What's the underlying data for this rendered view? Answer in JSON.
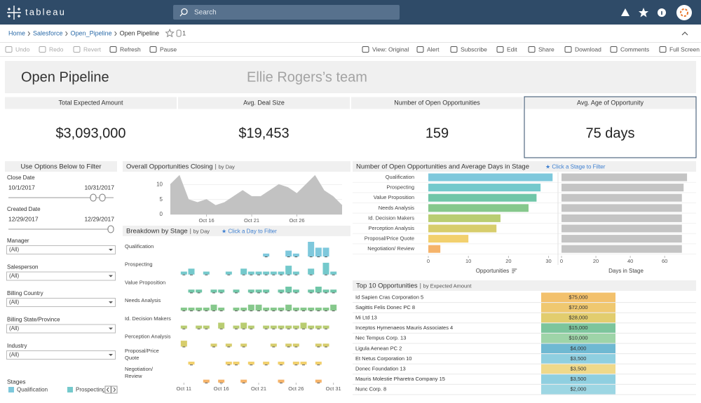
{
  "nav": {
    "logo": "tableau",
    "search": "Search"
  },
  "breadcrumb": {
    "items": [
      "Home",
      "Salesforce",
      "Open_Pipeline",
      "Open Pipeline"
    ],
    "count": 1
  },
  "toolbar": {
    "left": [
      "Undo",
      "Redo",
      "Revert",
      "Refresh",
      "Pause"
    ],
    "right": [
      "View: Original",
      "Alert",
      "Subscribe",
      "Edit",
      "Share",
      "Download",
      "Comments",
      "Full Screen"
    ]
  },
  "header": {
    "title": "Open Pipeline",
    "subtitle": "Ellie Rogers’s team"
  },
  "kpis": [
    {
      "label": "Total Expected Amount",
      "value": "$3,093,000"
    },
    {
      "label": "Avg. Deal Size",
      "value": "$19,453"
    },
    {
      "label": "Number of Open Opportunities",
      "value": "159"
    },
    {
      "label": "Avg. Age of Opportunity",
      "value": "75 days"
    }
  ],
  "filters": {
    "title": "Use Options Below to Filter",
    "sliders": [
      {
        "label": "Close Date",
        "from": "10/1/2017",
        "to": "10/31/2017"
      },
      {
        "label": "Created Date",
        "from": "12/29/2017",
        "to": "12/29/2017"
      }
    ],
    "dropdowns": [
      {
        "label": "Manager",
        "value": "(All)"
      },
      {
        "label": "Salesperson",
        "value": "(All)"
      },
      {
        "label": "Billing Country",
        "value": "(All)"
      },
      {
        "label": "Billing State/Province",
        "value": "(All)"
      },
      {
        "label": "Industry",
        "value": "(All)"
      }
    ],
    "legend_title": "Stages"
  },
  "top10": {
    "title": "Top 10 Opportunities",
    "subtitle": "by Expected Amount",
    "rows": [
      [
        "Id Sapien Cras Corporation 5",
        "$75,000"
      ],
      [
        "Sagittis Felis Donec PC 8",
        "$72,000"
      ],
      [
        "Mi Ltd 13",
        "$28,000"
      ],
      [
        "Inceptos Hymenaeos Mauris Associates 4",
        "$15,000"
      ],
      [
        "Nec Tempus Corp. 13",
        "$10,000"
      ],
      [
        "Ligula Aenean PC 2",
        "$4,000"
      ],
      [
        "Et Netus Corporation 10",
        "$3,500"
      ],
      [
        "Donec Foundation 13",
        "$3,500"
      ],
      [
        "Mauris Molestie Pharetra Company 15",
        "$3,500"
      ],
      [
        "Nunc Corp. 8",
        "$2,000"
      ]
    ],
    "colors": [
      "#f3c16c",
      "#efc870",
      "#e2cd6e",
      "#7cc59c",
      "#9ed4a8",
      "#6fb9d2",
      "#8fcfe0",
      "#efd98a",
      "#8fcfe0",
      "#9dd6e3"
    ]
  },
  "chart_data": [
    {
      "type": "area",
      "title": "Overall Opportunities Closing",
      "subtitle": "by Day",
      "color": "#c2c2c2",
      "x": [
        12,
        13,
        14,
        15,
        16,
        17,
        18,
        19,
        20,
        21,
        22,
        23,
        24,
        25,
        26,
        27,
        28,
        29,
        30,
        31
      ],
      "values": [
        10,
        13,
        5,
        4,
        5,
        3,
        4,
        6,
        8,
        6,
        6,
        8,
        10,
        9,
        7,
        10,
        13,
        8,
        6,
        3
      ],
      "xlim": [
        12,
        31
      ],
      "ylim": [
        0,
        15
      ],
      "yticks": [
        0,
        5,
        10
      ],
      "xticks": [
        {
          "value": 16,
          "label": "Oct 16"
        },
        {
          "value": 21,
          "label": "Oct 21"
        },
        {
          "value": 26,
          "label": "Oct 26"
        }
      ]
    },
    {
      "type": "strip",
      "title": "Breakdown by Stage",
      "subtitle": "by Day",
      "annotation": "★ Click a Day to Filter",
      "x": [
        11,
        12,
        13,
        14,
        15,
        16,
        17,
        18,
        19,
        20,
        21,
        22,
        23,
        24,
        25,
        26,
        27,
        28,
        29,
        30,
        31
      ],
      "xlim": [
        10.5,
        31.5
      ],
      "ylim": [
        0,
        5
      ],
      "xticks": [
        {
          "value": 11,
          "label": "Oct 11"
        },
        {
          "value": 16,
          "label": "Oct 16"
        },
        {
          "value": 21,
          "label": "Oct 21"
        },
        {
          "value": 26,
          "label": "Oct 26"
        },
        {
          "value": 31,
          "label": "Oct 31"
        }
      ],
      "series": [
        {
          "name": "Qualification",
          "color": "#7ec8dc",
          "values": [
            null,
            null,
            null,
            null,
            null,
            null,
            null,
            null,
            null,
            null,
            null,
            1,
            null,
            null,
            2,
            1,
            null,
            5,
            3,
            3,
            null
          ]
        },
        {
          "name": "Prospecting",
          "color": "#74c9cc",
          "values": [
            1,
            2,
            null,
            1,
            null,
            null,
            1,
            null,
            2,
            1,
            1,
            1,
            1,
            1,
            3,
            1,
            null,
            2,
            null,
            4,
            1
          ]
        },
        {
          "name": "Value Proposition",
          "color": "#70c6a8",
          "values": [
            null,
            1,
            1,
            null,
            1,
            1,
            null,
            1,
            null,
            1,
            1,
            1,
            null,
            1,
            2,
            1,
            null,
            1,
            2,
            1,
            1
          ]
        },
        {
          "name": "Needs Analysis",
          "color": "#86c88c",
          "values": [
            1,
            1,
            1,
            1,
            2,
            1,
            null,
            1,
            1,
            2,
            2,
            1,
            1,
            1,
            2,
            1,
            1,
            1,
            1,
            1,
            2
          ]
        },
        {
          "name": "Id. Decision Makers",
          "color": "#b9cd72",
          "values": [
            1,
            null,
            1,
            1,
            null,
            2,
            null,
            1,
            2,
            1,
            null,
            1,
            1,
            1,
            1,
            1,
            2,
            1,
            1,
            1,
            null
          ]
        },
        {
          "name": "Perception Analysis",
          "color": "#d7cd6c",
          "values": [
            2,
            null,
            null,
            null,
            1,
            null,
            1,
            null,
            1,
            null,
            null,
            null,
            1,
            null,
            1,
            1,
            null,
            null,
            1,
            1,
            null
          ]
        },
        {
          "name": "Proposal/Price Quote",
          "color": "#f2d06e",
          "values": [
            null,
            1,
            null,
            null,
            null,
            null,
            1,
            1,
            null,
            1,
            null,
            1,
            null,
            1,
            null,
            1,
            1,
            null,
            1,
            null,
            null
          ]
        },
        {
          "name": "Negotiation/ Review",
          "color": "#f5b36a",
          "values": [
            null,
            null,
            null,
            1,
            null,
            1,
            null,
            null,
            1,
            null,
            null,
            null,
            null,
            1,
            null,
            null,
            null,
            null,
            1,
            null,
            null
          ]
        }
      ]
    },
    {
      "type": "hbar",
      "title": "Number of Open Opportunities and Average Days in Stage",
      "annotation": "★ Click a Stage to Filter",
      "categories": [
        "Qualification",
        "Prospecting",
        "Value Proposition",
        "Needs Analysis",
        "Id. Decision Makers",
        "Perception Analysis",
        "Proposal/Price Quote",
        "Negotiation/ Review"
      ],
      "colors": [
        "#7ec8dc",
        "#74c9cc",
        "#70c6a8",
        "#86c88c",
        "#b9cd72",
        "#d7cd6c",
        "#f2d06e",
        "#f5b36a"
      ],
      "panels": [
        {
          "xlabel": "Opportunities",
          "values": [
            31,
            28,
            27,
            25,
            18,
            17,
            10,
            3
          ],
          "xlim": [
            0,
            32
          ],
          "xticks": [
            0,
            10,
            20,
            30
          ]
        },
        {
          "xlabel": "Days in Stage",
          "values": [
            73,
            71,
            70,
            70,
            70,
            70,
            70,
            70
          ],
          "xlim": [
            0,
            75
          ],
          "xticks": [
            0,
            20,
            40,
            60
          ],
          "color": "#c4c4c4"
        }
      ]
    }
  ]
}
